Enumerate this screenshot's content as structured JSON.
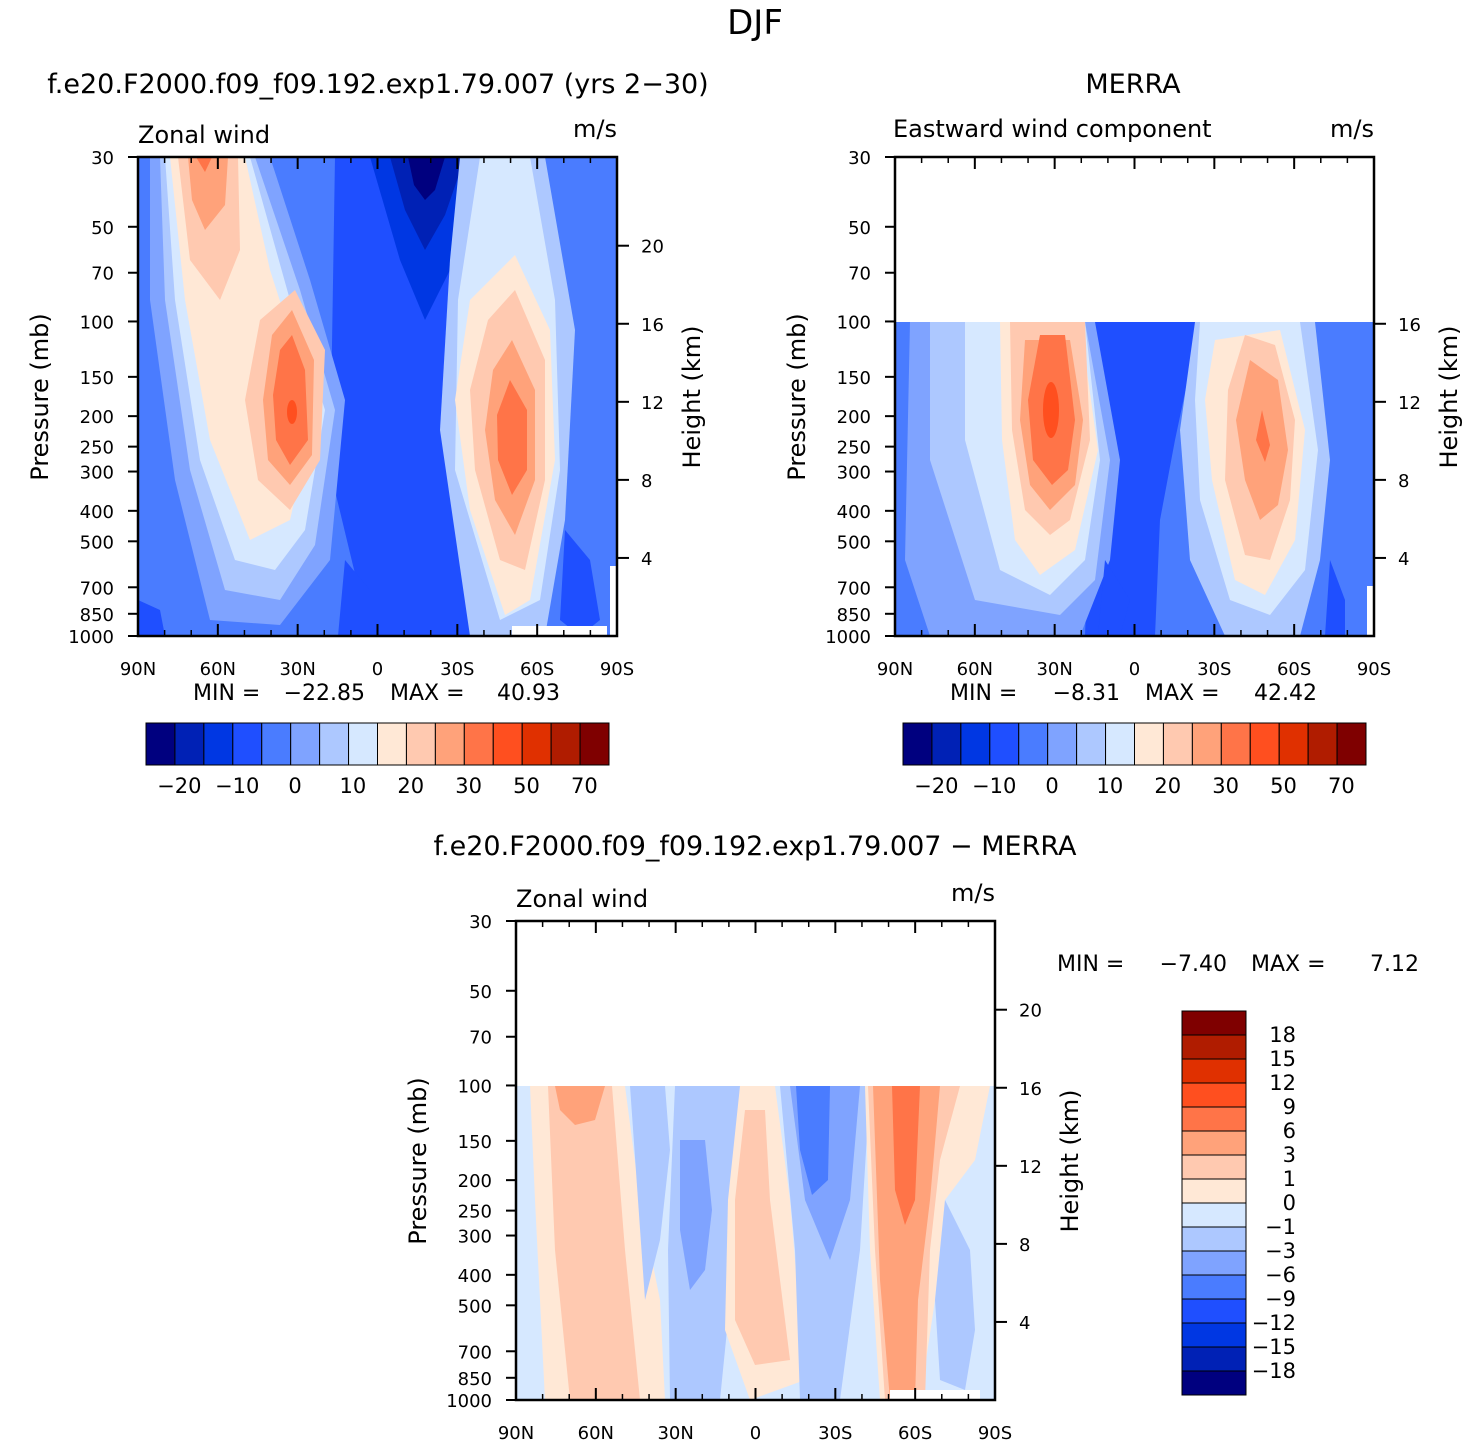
{
  "figure": {
    "title": "DJF",
    "panel_top_left_title": "f.e20.F2000.f09_f09.192.exp1.79.007 (yrs 2−30)",
    "panel_top_right_title": "MERRA",
    "panel_bottom_title": "f.e20.F2000.f09_f09.192.exp1.79.007 − MERRA"
  },
  "chart_data": [
    {
      "type": "heatmap",
      "panel": "model",
      "variable_label": "Zonal wind",
      "units_label": "m/s",
      "ylabel": "Pressure (mb)",
      "y2label": "Height (km)",
      "x_ticks": [
        "90N",
        "60N",
        "30N",
        "0",
        "30S",
        "60S",
        "90S"
      ],
      "y_ticks": [
        30,
        50,
        70,
        100,
        150,
        200,
        250,
        300,
        400,
        500,
        700,
        850,
        1000
      ],
      "y2_ticks": [
        20,
        16,
        12,
        8,
        4
      ],
      "y_scale": "log",
      "y_range_mb": [
        1000,
        30
      ],
      "stats_text": {
        "min_label": "MIN =",
        "min": "−22.85",
        "max_label": "MAX =",
        "max": "40.93"
      },
      "jets": [
        {
          "lat": 30,
          "p": 200,
          "max": 40.93
        },
        {
          "lat": -50,
          "p": 250,
          "max": 35
        },
        {
          "lat": 65,
          "p": 30,
          "max": 22
        },
        {
          "lat": -18,
          "p": 30,
          "min": -22.85
        }
      ]
    },
    {
      "type": "heatmap",
      "panel": "merra",
      "variable_label": "Eastward wind component",
      "units_label": "m/s",
      "ylabel": "Pressure (mb)",
      "y2label": "Height (km)",
      "x_ticks": [
        "90N",
        "60N",
        "30N",
        "0",
        "30S",
        "60S",
        "90S"
      ],
      "y_ticks": [
        30,
        50,
        70,
        100,
        150,
        200,
        250,
        300,
        400,
        500,
        700,
        850,
        1000
      ],
      "y2_ticks": [
        16,
        12,
        8,
        4
      ],
      "data_top_mb": 100,
      "stats_text": {
        "min_label": "MIN =",
        "min": "−8.31",
        "max_label": "MAX =",
        "max": "42.42"
      },
      "jets": [
        {
          "lat": 30,
          "p": 200,
          "max": 42.42
        },
        {
          "lat": -48,
          "p": 250,
          "max": 35
        }
      ]
    },
    {
      "type": "heatmap",
      "panel": "difference",
      "variable_label": "Zonal wind",
      "units_label": "m/s",
      "ylabel": "Pressure (mb)",
      "y2label": "Height (km)",
      "x_ticks": [
        "90N",
        "60N",
        "30N",
        "0",
        "30S",
        "60S",
        "90S"
      ],
      "y_ticks": [
        30,
        50,
        70,
        100,
        150,
        200,
        250,
        300,
        400,
        500,
        700,
        850,
        1000
      ],
      "y2_ticks": [
        20,
        16,
        12,
        8,
        4
      ],
      "data_top_mb": 100,
      "stats_text": {
        "min_label": "MIN =",
        "min": "−7.40",
        "max_label": "MAX =",
        "max": "7.12"
      }
    }
  ],
  "colorbar_main": {
    "labels": [
      "−20",
      "−10",
      "0",
      "10",
      "20",
      "30",
      "50",
      "70"
    ],
    "colors": [
      "#00007f",
      "#0021b5",
      "#0037e3",
      "#1f4fff",
      "#4a7cff",
      "#7fa3ff",
      "#adc8ff",
      "#d6e8ff",
      "#ffe8d6",
      "#ffc9b0",
      "#ffa27a",
      "#ff7448",
      "#ff4f1f",
      "#e03000",
      "#b01c00",
      "#7f0000"
    ]
  },
  "colorbar_diff": {
    "labels": [
      "18",
      "15",
      "12",
      "9",
      "6",
      "3",
      "1",
      "0",
      "−1",
      "−3",
      "−6",
      "−9",
      "−12",
      "−15",
      "−18"
    ],
    "colors": [
      "#7f0000",
      "#b01c00",
      "#e03000",
      "#ff4f1f",
      "#ff7448",
      "#ffa27a",
      "#ffc9b0",
      "#ffe8d6",
      "#d6e8ff",
      "#adc8ff",
      "#7fa3ff",
      "#4a7cff",
      "#1f4fff",
      "#0037e3",
      "#0021b5",
      "#00007f"
    ]
  }
}
